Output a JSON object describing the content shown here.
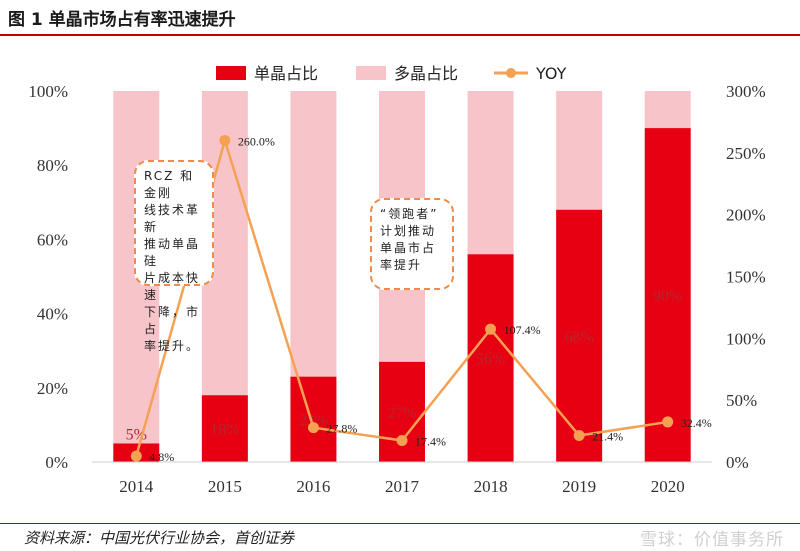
{
  "figure": {
    "title": "图 1 单晶市场占有率迅速提升",
    "source": "资料来源：中国光伏行业协会，首创证券",
    "watermark": "雪球：价值事务所"
  },
  "annotations": [
    {
      "text": "RCZ 和金刚线技术革新推动单晶硅片成本快速下降，市占率提升。",
      "lines": [
        "RCZ 和金刚",
        "线技术革新",
        "推动单晶硅",
        "片成本快速",
        "下降，市占",
        "率提升。"
      ]
    },
    {
      "text": "“领跑者”计划推动单晶市占率提升",
      "lines": [
        "“领跑者”",
        "计划推动",
        "单晶市占",
        "率提升"
      ]
    }
  ],
  "chart_data": {
    "type": "bar",
    "stacked": true,
    "categories": [
      "2014",
      "2015",
      "2016",
      "2017",
      "2018",
      "2019",
      "2020"
    ],
    "series": [
      {
        "name": "单晶占比",
        "kind": "bar",
        "axis": "left",
        "color": "#e60012",
        "values": [
          5,
          18,
          23,
          27,
          56,
          68,
          90
        ],
        "labels": [
          "5%",
          "18%",
          "23%",
          "27%",
          "56%",
          "68%",
          "90%"
        ]
      },
      {
        "name": "多晶占比",
        "kind": "bar",
        "axis": "left",
        "color": "#f7c5c9",
        "values": [
          95,
          82,
          77,
          73,
          44,
          32,
          10
        ]
      },
      {
        "name": "YOY",
        "kind": "line",
        "axis": "right",
        "color": "#f4a154",
        "values": [
          4.8,
          260.0,
          27.8,
          17.4,
          107.4,
          21.4,
          32.4
        ],
        "labels": [
          "4.8%",
          "260.0%",
          "27.8%",
          "17.4%",
          "107.4%",
          "21.4%",
          "32.4%"
        ]
      }
    ],
    "y_left": {
      "min": 0,
      "max": 100,
      "ticks": [
        "0%",
        "20%",
        "40%",
        "60%",
        "80%",
        "100%"
      ]
    },
    "y_right": {
      "min": 0,
      "max": 300,
      "ticks": [
        "0%",
        "50%",
        "100%",
        "150%",
        "200%",
        "250%",
        "300%"
      ]
    },
    "legend": {
      "position": "top",
      "entries": [
        "单晶占比",
        "多晶占比",
        "YOY"
      ]
    },
    "grid": false
  }
}
